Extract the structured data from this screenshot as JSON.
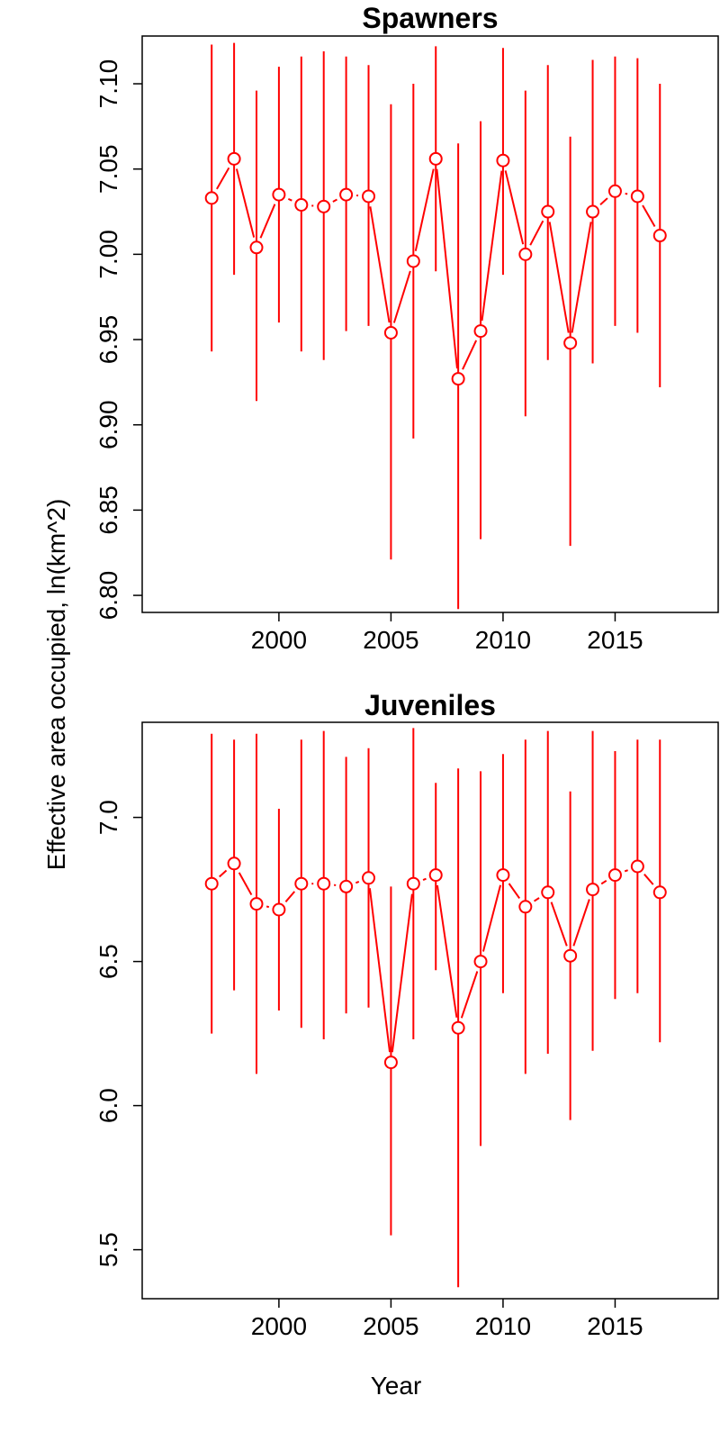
{
  "colors": {
    "series": "#ff0000",
    "axis": "#000000",
    "background": "#ffffff"
  },
  "xlabel": "Year",
  "ylabel": "Effective area occupied, ln(km^2)",
  "chart_data": [
    {
      "type": "scatter",
      "title": "Spawners",
      "x": [
        1997,
        1998,
        1999,
        2000,
        2001,
        2002,
        2003,
        2004,
        2005,
        2006,
        2007,
        2008,
        2009,
        2010,
        2011,
        2012,
        2013,
        2014,
        2015,
        2016,
        2017
      ],
      "y": [
        7.033,
        7.056,
        7.004,
        7.035,
        7.029,
        7.028,
        7.035,
        7.034,
        6.954,
        6.996,
        7.056,
        6.927,
        6.955,
        7.055,
        7.0,
        7.025,
        6.948,
        7.025,
        7.037,
        7.034,
        7.011
      ],
      "lower": [
        6.943,
        6.988,
        6.914,
        6.96,
        6.943,
        6.938,
        6.955,
        6.958,
        6.821,
        6.892,
        6.99,
        6.792,
        6.833,
        6.988,
        6.905,
        6.938,
        6.829,
        6.936,
        6.958,
        6.954,
        6.922
      ],
      "upper": [
        7.123,
        7.124,
        7.096,
        7.11,
        7.116,
        7.119,
        7.116,
        7.111,
        7.088,
        7.1,
        7.122,
        7.065,
        7.078,
        7.121,
        7.096,
        7.111,
        7.069,
        7.114,
        7.116,
        7.115,
        7.1
      ],
      "xlim": [
        1993.9,
        2019.6
      ],
      "ylim": [
        6.79,
        7.128
      ],
      "xticks": [
        "2000",
        "2005",
        "2010",
        "2015"
      ],
      "yticks": [
        "6.80",
        "6.85",
        "6.90",
        "6.95",
        "7.00",
        "7.05",
        "7.10"
      ],
      "grid": false
    },
    {
      "type": "scatter",
      "title": "Juveniles",
      "x": [
        1997,
        1998,
        1999,
        2000,
        2001,
        2002,
        2003,
        2004,
        2005,
        2006,
        2007,
        2008,
        2009,
        2010,
        2011,
        2012,
        2013,
        2014,
        2015,
        2016,
        2017
      ],
      "y": [
        6.77,
        6.84,
        6.7,
        6.68,
        6.77,
        6.77,
        6.76,
        6.79,
        6.15,
        6.77,
        6.8,
        6.27,
        6.5,
        6.8,
        6.69,
        6.74,
        6.52,
        6.75,
        6.8,
        6.83,
        6.74
      ],
      "lower": [
        6.25,
        6.4,
        6.11,
        6.33,
        6.27,
        6.23,
        6.32,
        6.34,
        5.55,
        6.23,
        6.47,
        5.37,
        5.86,
        6.39,
        6.11,
        6.18,
        5.95,
        6.19,
        6.37,
        6.39,
        6.22
      ],
      "upper": [
        7.29,
        7.27,
        7.29,
        7.03,
        7.27,
        7.3,
        7.21,
        7.24,
        6.76,
        7.31,
        7.12,
        7.17,
        7.16,
        7.22,
        7.27,
        7.3,
        7.09,
        7.3,
        7.23,
        7.27,
        7.27
      ],
      "xlim": [
        1993.9,
        2019.6
      ],
      "ylim": [
        5.33,
        7.33
      ],
      "xticks": [
        "2000",
        "2005",
        "2010",
        "2015"
      ],
      "yticks": [
        "5.5",
        "6.0",
        "6.5",
        "7.0"
      ],
      "grid": false
    }
  ]
}
